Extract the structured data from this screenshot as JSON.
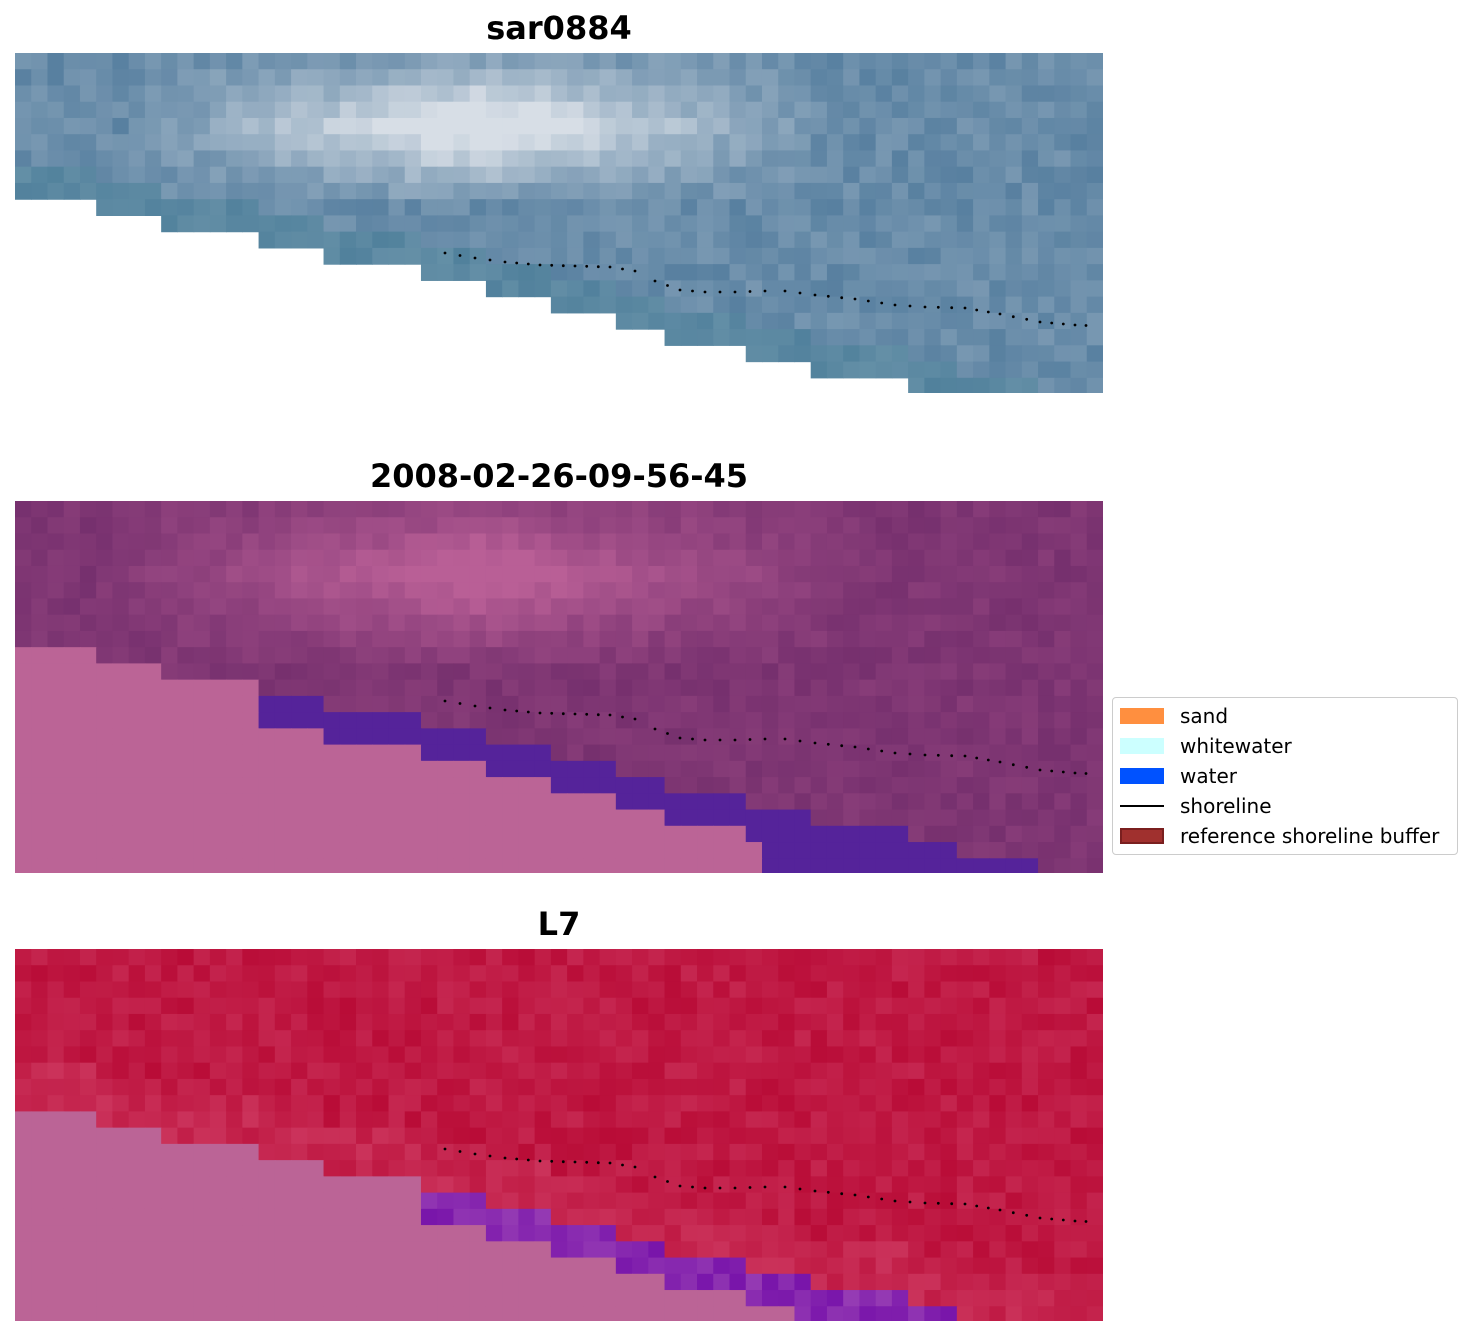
{
  "panels": [
    {
      "title": "sar0884",
      "style": "rgb"
    },
    {
      "title": "2008-02-26-09-56-45",
      "style": "classified"
    },
    {
      "title": "L7",
      "style": "index"
    }
  ],
  "legend": {
    "items": [
      {
        "label": "sand",
        "color": "#ff8f3f",
        "kind": "patch"
      },
      {
        "label": "whitewater",
        "color": "#ccffff",
        "kind": "patch"
      },
      {
        "label": "water",
        "color": "#0052ff",
        "kind": "patch"
      },
      {
        "label": "shoreline",
        "color": "#000000",
        "kind": "line"
      },
      {
        "label": "reference shoreline buffer",
        "color": "#a0302e",
        "kind": "patch"
      }
    ]
  },
  "colors": {
    "nodata_pink": "#bb6496",
    "water_purple": "#55239a",
    "index_red": "#b91a45",
    "shoreline": "#000000"
  }
}
